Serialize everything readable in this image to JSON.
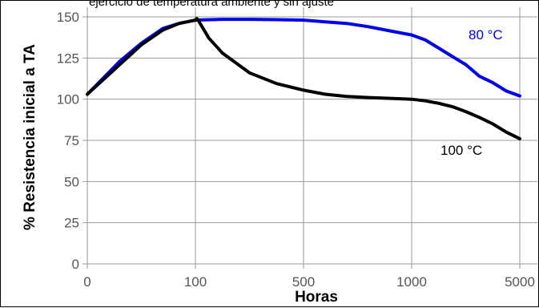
{
  "top_text": "ejercicio de temperatura ambiente y sin ajuste",
  "colors": {
    "series_80": "#0000ee",
    "series_100": "#000000",
    "grid": "#999999",
    "tick_text": "#555555"
  },
  "chart_data": {
    "type": "line",
    "xlabel": "Horas",
    "ylabel": "% Resistencia inicial a TA",
    "x_ticks": [
      "0",
      "100",
      "500",
      "1000",
      "5000"
    ],
    "x_tick_values": [
      0,
      100,
      500,
      1000,
      5000
    ],
    "x_scale": "piecewise",
    "ylim": [
      0,
      150
    ],
    "y_ticks": [
      0,
      25,
      50,
      75,
      100,
      125,
      150
    ],
    "grid": true,
    "series": [
      {
        "name": "80 °C",
        "color": "#0000ee",
        "x": [
          0,
          15,
          30,
          50,
          70,
          85,
          100,
          200,
          300,
          400,
          500,
          600,
          700,
          800,
          900,
          1000,
          1500,
          2000,
          2500,
          3000,
          3500,
          4000,
          4500,
          5000
        ],
        "y": [
          103,
          113,
          123,
          134,
          143,
          146,
          148,
          148.5,
          148.5,
          148.3,
          148,
          147,
          146,
          144,
          141.5,
          139,
          136,
          131,
          126,
          121,
          114,
          110,
          105,
          102
        ]
      },
      {
        "name": "100 °C",
        "color": "#000000",
        "x": [
          0,
          15,
          30,
          50,
          70,
          85,
          100,
          105,
          110,
          150,
          200,
          300,
          400,
          500,
          600,
          700,
          800,
          900,
          1000,
          1500,
          2000,
          2500,
          3000,
          3500,
          4000,
          4500,
          5000
        ],
        "y": [
          103,
          112,
          121,
          133,
          142,
          146,
          148,
          149,
          148,
          137,
          128,
          116,
          109.5,
          105.5,
          103,
          101.7,
          101,
          100.5,
          100,
          99,
          97.5,
          95.5,
          92.5,
          89,
          85,
          80,
          76
        ]
      }
    ]
  }
}
